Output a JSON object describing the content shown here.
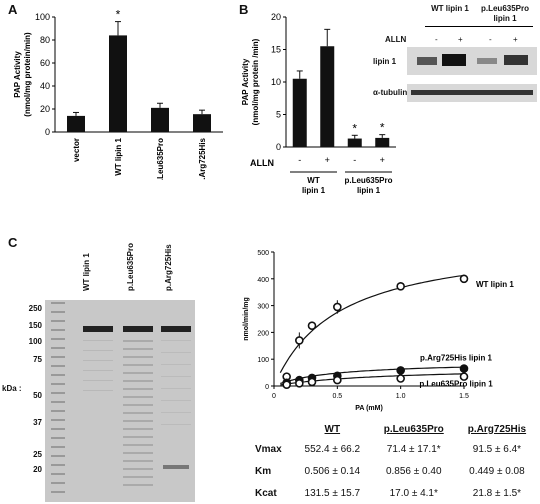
{
  "panel_labels": {
    "a": "A",
    "b": "B",
    "c": "C"
  },
  "chart_data": [
    {
      "type": "bar",
      "panel": "A",
      "ylabel": "PAP Activity (nmol/mg protein/min)",
      "ylim": [
        0,
        100
      ],
      "yticks": [
        "0",
        "20",
        "40",
        "60",
        "80",
        "100"
      ],
      "categories": [
        "vector",
        "WT lipin 1",
        "p.Leu635Pro",
        "p.Arg725His"
      ],
      "values": [
        14,
        84,
        21,
        15.5
      ],
      "errors": [
        3,
        12,
        4,
        3.5
      ],
      "annotations": [
        "",
        "*",
        "",
        ""
      ]
    },
    {
      "type": "bar",
      "panel": "B",
      "ylabel": "PAP Activity (nmol/mg protein /min)",
      "ylim": [
        0,
        20
      ],
      "yticks": [
        "0",
        "5",
        "10",
        "15",
        "20"
      ],
      "categories": [
        "-",
        "+",
        "-",
        "+"
      ],
      "values": [
        10.5,
        15.5,
        1.3,
        1.4
      ],
      "errors": [
        1.2,
        2.6,
        0.5,
        0.5
      ],
      "annotations": [
        "",
        "",
        "*",
        "*"
      ],
      "row_label": "ALLN",
      "groups": [
        "WT lipin 1",
        "p.Leu635Pro lipin 1"
      ]
    },
    {
      "type": "scatter",
      "panel": "C",
      "ylabel": "nmol/min/mg",
      "xlabel": "PA (mM)",
      "xlim": [
        0,
        1.5
      ],
      "ylim": [
        0,
        500
      ],
      "xticks": [
        "0",
        "0.5",
        "1.0",
        "1.5"
      ],
      "yticks": [
        "0",
        "100",
        "200",
        "300",
        "400",
        "500"
      ],
      "series": [
        {
          "name": "WT lipin 1",
          "x": [
            0.1,
            0.2,
            0.3,
            0.5,
            1.0,
            1.5
          ],
          "y": [
            35,
            170,
            225,
            295,
            372,
            400
          ],
          "err": [
            8,
            30,
            15,
            25,
            15,
            15
          ],
          "fit": {
            "vmax": 552.4,
            "km": 0.506
          }
        },
        {
          "name": "p.Arg725His lipin 1",
          "x": [
            0.1,
            0.2,
            0.3,
            0.5,
            1.0,
            1.5
          ],
          "y": [
            12,
            22,
            30,
            38,
            58,
            65
          ],
          "err": [
            3,
            5,
            5,
            6,
            8,
            8
          ],
          "fit": {
            "vmax": 91.5,
            "km": 0.449
          }
        },
        {
          "name": "p.Leu635Pro lipin 1",
          "x": [
            0.1,
            0.2,
            0.3,
            0.5,
            1.0,
            1.5
          ],
          "y": [
            5,
            10,
            15,
            22,
            28,
            35
          ],
          "err": [
            2,
            3,
            3,
            4,
            5,
            5
          ],
          "fit": {
            "vmax": 71.4,
            "km": 0.856
          }
        }
      ]
    }
  ],
  "blot_b": {
    "headers": [
      "WT lipin 1",
      "p.Leu635Pro lipin 1"
    ],
    "treatment_label": "ALLN",
    "treatments": [
      "-",
      "+",
      "-",
      "+"
    ],
    "rows": [
      "lipin 1",
      "α-tubulin"
    ]
  },
  "gel": {
    "kda_label": "kDa :",
    "markers": [
      "250",
      "150",
      "100",
      "75",
      "50",
      "37",
      "25",
      "20"
    ],
    "lanes": [
      "WT lipin 1",
      "p.Leu635Pro",
      "p.Arg725His"
    ]
  },
  "kinetics_table": {
    "headers": [
      "WT",
      "p.Leu635Pro",
      "p.Arg725His"
    ],
    "rows": [
      {
        "label": "Vmax",
        "values": [
          "552.4 ± 66.2",
          "71.4 ± 17.1*",
          "91.5 ± 6.4*"
        ]
      },
      {
        "label": "Km",
        "values": [
          "0.506 ± 0.14",
          "0.856 ± 0.40",
          "0.449 ± 0.08"
        ]
      },
      {
        "label": "Kcat",
        "values": [
          "131.5 ± 15.7",
          "17.0 ± 4.1*",
          "21.8 ± 1.5*"
        ]
      }
    ]
  }
}
